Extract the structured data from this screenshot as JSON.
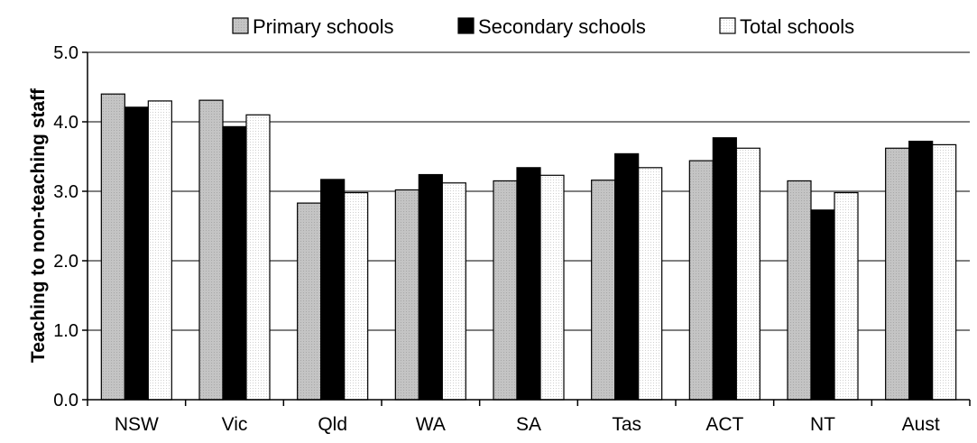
{
  "chart_data": {
    "type": "bar",
    "title": "",
    "xlabel": "",
    "ylabel": "Teaching to non-teaching staff",
    "ylim": [
      0,
      5
    ],
    "yticks": [
      "0.0",
      "1.0",
      "2.0",
      "3.0",
      "4.0",
      "5.0"
    ],
    "grid": true,
    "legend_position": "top",
    "categories": [
      "NSW",
      "Vic",
      "Qld",
      "WA",
      "SA",
      "Tas",
      "ACT",
      "NT",
      "Aust"
    ],
    "series": [
      {
        "name": "Primary schools",
        "color": "#c0c0c0",
        "values": [
          4.4,
          4.31,
          2.83,
          3.02,
          3.15,
          3.16,
          3.44,
          3.15,
          3.62
        ]
      },
      {
        "name": "Secondary schools",
        "color": "#000000",
        "values": [
          4.21,
          3.93,
          3.17,
          3.24,
          3.34,
          3.54,
          3.77,
          2.73,
          3.72
        ]
      },
      {
        "name": "Total schools",
        "color": "#ffffff",
        "values": [
          4.3,
          4.1,
          2.98,
          3.12,
          3.23,
          3.34,
          3.62,
          2.98,
          3.67
        ]
      }
    ]
  }
}
